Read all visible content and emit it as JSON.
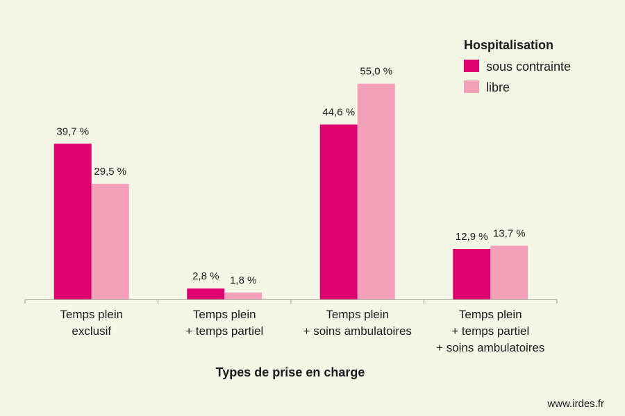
{
  "chart_data": {
    "type": "bar",
    "categories": [
      [
        "Temps plein",
        "exclusif"
      ],
      [
        "Temps plein",
        "+ temps partiel"
      ],
      [
        "Temps plein",
        "+ soins ambulatoires"
      ],
      [
        "Temps plein",
        "+ temps partiel",
        "+ soins ambulatoires"
      ]
    ],
    "series": [
      {
        "name": "sous contrainte",
        "color": "#e0006f",
        "values": [
          39.7,
          2.8,
          44.6,
          12.9
        ],
        "labels": [
          "39,7 %",
          "2,8 %",
          "44,6 %",
          "12,9 %"
        ]
      },
      {
        "name": "libre",
        "color": "#f2a1b8",
        "values": [
          29.5,
          1.8,
          55.0,
          13.7
        ],
        "labels": [
          "29,5 %",
          "1,8 %",
          "55,0 %",
          "13,7 %"
        ]
      }
    ],
    "legend_title": "Hospitalisation",
    "legend_position": "top-right",
    "xlabel": "Types de prise en charge",
    "ylabel": "",
    "ylim": [
      0,
      60
    ],
    "grid": false
  },
  "footer": "www.irdes.fr",
  "colors": {
    "background": "#f5f7e6",
    "axis": "#999999",
    "text": "#1a1a1a"
  }
}
